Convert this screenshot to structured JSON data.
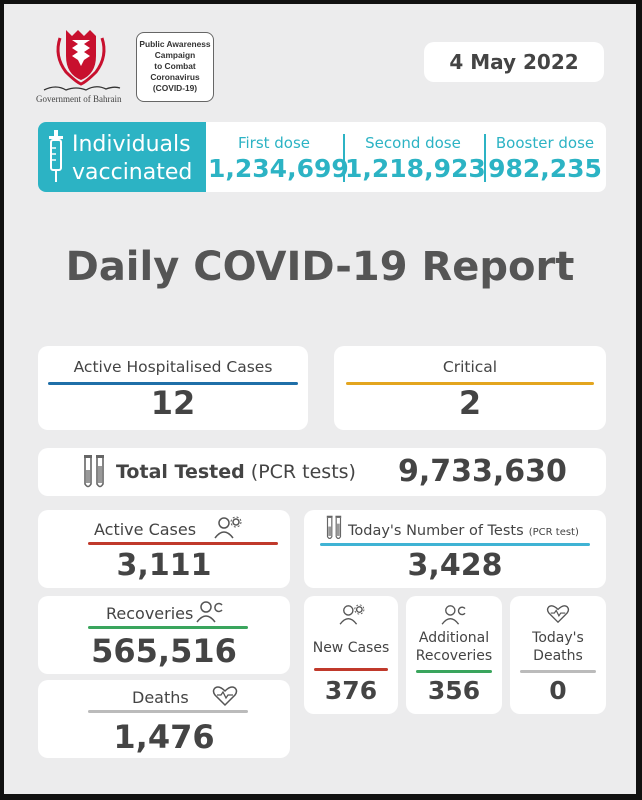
{
  "header": {
    "gov_caption": "Government of Bahrain",
    "campaign_box": [
      "Public Awareness",
      "Campaign",
      "to Combat",
      "Coronavirus",
      "(COVID-19)"
    ],
    "date": "4 May 2022"
  },
  "vaccination": {
    "label_line1": "Individuals",
    "label_line2": "vaccinated",
    "first_dose_label": "First dose",
    "first_dose_value": "1,234,699",
    "second_dose_label": "Second dose",
    "second_dose_value": "1,218,923",
    "booster_dose_label": "Booster dose",
    "booster_dose_value": "982,235"
  },
  "title": "Daily COVID-19 Report",
  "active_hospitalised": {
    "label": "Active Hospitalised Cases",
    "value": "12"
  },
  "critical": {
    "label": "Critical",
    "value": "2"
  },
  "total_tested": {
    "label": "Total Tested",
    "sub": "(PCR tests)",
    "value": "9,733,630"
  },
  "active_cases": {
    "label": "Active Cases",
    "value": "3,111"
  },
  "todays_tests": {
    "label": "Today's Number of Tests",
    "sub": "(PCR test)",
    "value": "3,428"
  },
  "recoveries": {
    "label": "Recoveries",
    "value": "565,516"
  },
  "deaths": {
    "label": "Deaths",
    "value": "1,476"
  },
  "new_cases": {
    "label": "New Cases",
    "value": "376"
  },
  "additional_recoveries": {
    "label_line1": "Additional",
    "label_line2": "Recoveries",
    "value": "356"
  },
  "todays_deaths": {
    "label_line1": "Today's",
    "label_line2": "Deaths",
    "value": "0"
  },
  "colors": {
    "teal": "#2cb3c4",
    "blue": "#1f6fa8",
    "orange": "#e3a51f",
    "red": "#c0392b",
    "green": "#3aa55d",
    "light_blue": "#3fb3d4"
  },
  "icons": [
    "bahrain-emblem-icon",
    "syringe-icon",
    "test-tubes-icon",
    "person-gear-icon",
    "person-refresh-icon",
    "heart-pulse-icon"
  ]
}
